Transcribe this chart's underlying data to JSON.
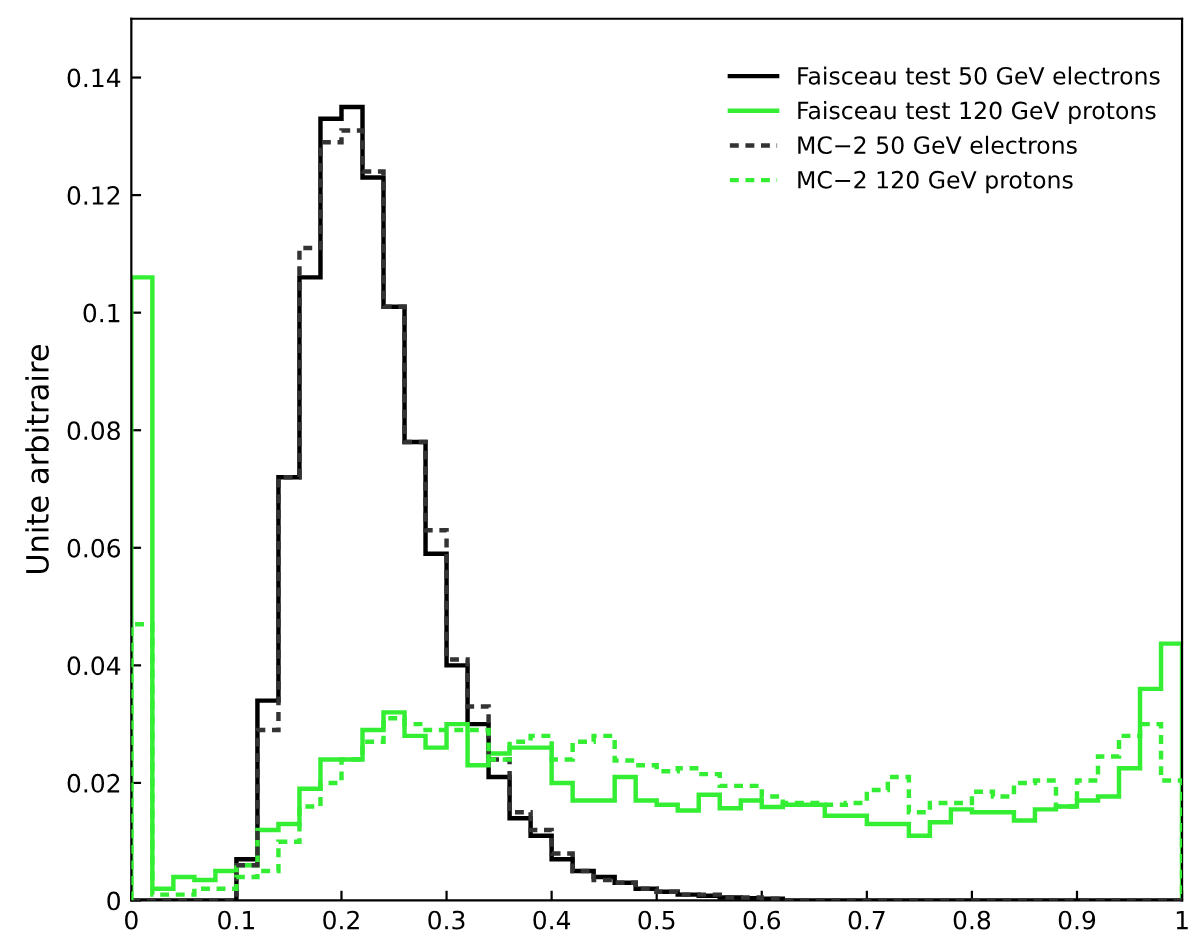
{
  "chart_data": {
    "type": "histogram",
    "ylabel": "Unite arbitraire",
    "bins": [
      0,
      0.02,
      0.04,
      0.06,
      0.08,
      0.1,
      0.12,
      0.14,
      0.16,
      0.18,
      0.2,
      0.22,
      0.24,
      0.26,
      0.28,
      0.3,
      0.32,
      0.34,
      0.36,
      0.38,
      0.4,
      0.42,
      0.44,
      0.46,
      0.48,
      0.5,
      0.52,
      0.54,
      0.56,
      0.58,
      0.6,
      0.62,
      0.64,
      0.66,
      0.68,
      0.7,
      0.72,
      0.74,
      0.76,
      0.78,
      0.8,
      0.82,
      0.84,
      0.86,
      0.88,
      0.9,
      0.92,
      0.94,
      0.96,
      0.98,
      1
    ],
    "series": [
      {
        "name": "Faisceau test 50 GeV electrons",
        "color": "#000000",
        "line_style": "solid",
        "values": [
          0,
          0,
          0,
          0,
          0,
          0.007,
          0.034,
          0.072,
          0.106,
          0.133,
          0.135,
          0.123,
          0.101,
          0.078,
          0.059,
          0.04,
          0.03,
          0.021,
          0.014,
          0.011,
          0.007,
          0.005,
          0.004,
          0.003,
          0.002,
          0.0015,
          0.001,
          0.0008,
          0.0005,
          0.0004,
          0.0003,
          0,
          0,
          0,
          0,
          0,
          0,
          0,
          0,
          0,
          0,
          0,
          0,
          0,
          0,
          0,
          0,
          0,
          0,
          0
        ]
      },
      {
        "name": "Faisceau test 120 GeV protons",
        "color": "#33ee33",
        "line_style": "solid",
        "values": [
          0.106,
          0.002,
          0.004,
          0.0035,
          0.005,
          0.006,
          0.012,
          0.013,
          0.019,
          0.024,
          0.024,
          0.029,
          0.032,
          0.028,
          0.026,
          0.03,
          0.023,
          0.025,
          0.026,
          0.026,
          0.02,
          0.017,
          0.017,
          0.021,
          0.017,
          0.0163,
          0.0153,
          0.018,
          0.0157,
          0.017,
          0.0159,
          0.0163,
          0.0163,
          0.0144,
          0.0144,
          0.013,
          0.013,
          0.011,
          0.0133,
          0.0155,
          0.015,
          0.015,
          0.0136,
          0.0155,
          0.016,
          0.017,
          0.0177,
          0.0225,
          0.036,
          0.0437
        ]
      },
      {
        "name": "MC−2 50 GeV electrons",
        "color": "#333333",
        "line_style": "dotted",
        "values": [
          0,
          0,
          0,
          0,
          0,
          0.006,
          0.029,
          0.072,
          0.111,
          0.129,
          0.131,
          0.124,
          0.101,
          0.078,
          0.063,
          0.041,
          0.033,
          0.024,
          0.015,
          0.012,
          0.008,
          0.005,
          0.0035,
          0.003,
          0.002,
          0.0015,
          0.001,
          0.001,
          0.0005,
          0.0005,
          0.0003,
          0,
          0,
          0,
          0,
          0,
          0,
          0,
          0,
          0,
          0,
          0,
          0,
          0,
          0,
          0,
          0,
          0,
          0,
          0
        ]
      },
      {
        "name": "MC−2 120 GeV protons",
        "color": "#33ee33",
        "line_style": "dotted",
        "values": [
          0.047,
          0.001,
          0.001,
          0.002,
          0.002,
          0.004,
          0.005,
          0.01,
          0.016,
          0.02,
          0.024,
          0.027,
          0.031,
          0.03,
          0.029,
          0.029,
          0.029,
          0.024,
          0.027,
          0.028,
          0.024,
          0.027,
          0.028,
          0.0238,
          0.023,
          0.022,
          0.0225,
          0.0215,
          0.0195,
          0.0195,
          0.0177,
          0.0166,
          0.0166,
          0.0163,
          0.0166,
          0.0188,
          0.021,
          0.015,
          0.0166,
          0.0166,
          0.0185,
          0.0177,
          0.02,
          0.0204,
          0.016,
          0.0204,
          0.0245,
          0.028,
          0.03,
          0.0204
        ]
      }
    ],
    "xlim": [
      0,
      1
    ],
    "xticks": [
      0,
      0.1,
      0.2,
      0.3,
      0.4,
      0.5,
      0.6,
      0.7,
      0.8,
      0.9,
      1
    ],
    "ylim": [
      0,
      0.15
    ],
    "yticks": [
      0,
      0.02,
      0.04,
      0.06,
      0.08,
      0.1,
      0.12,
      0.14
    ],
    "grid": false,
    "legend": "top right"
  }
}
